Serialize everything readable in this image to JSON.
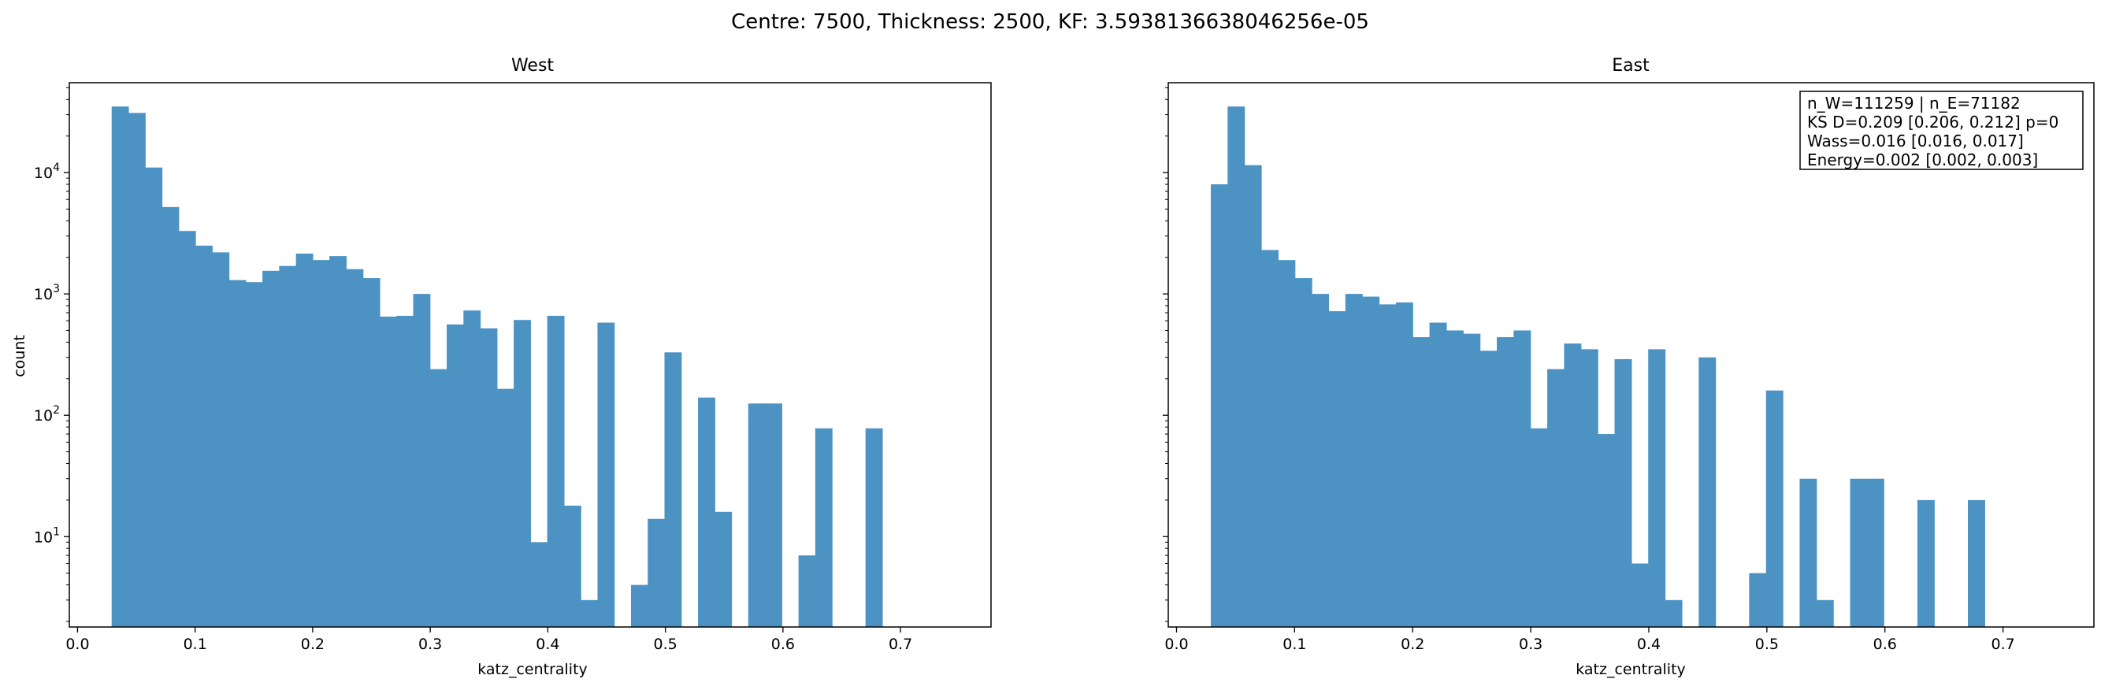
{
  "figure": {
    "suptitle": "Centre: 7500, Thickness: 2500, KF: 3.5938136638046256e-05"
  },
  "colors": {
    "bar": "#4c93c4",
    "axis": "#000000",
    "background": "#ffffff"
  },
  "chart_data": [
    {
      "type": "bar",
      "title": "West",
      "xlabel": "katz_centrality",
      "ylabel": "count",
      "yscale": "log",
      "xlim": [
        -0.007,
        0.777
      ],
      "ylim": [
        1.8,
        55000
      ],
      "xticks": [
        "0.0",
        "0.1",
        "0.2",
        "0.3",
        "0.4",
        "0.5",
        "0.6",
        "0.7"
      ],
      "yticks": [
        "10^1",
        "10^2",
        "10^3",
        "10^4"
      ],
      "bin_start": 0.029,
      "bin_width": 0.01425,
      "values": [
        35000,
        31000,
        11000,
        5200,
        3300,
        2500,
        2200,
        1300,
        1250,
        1550,
        1700,
        2150,
        1900,
        2050,
        1600,
        1350,
        650,
        660,
        1000,
        240,
        560,
        730,
        520,
        165,
        610,
        9,
        660,
        18,
        3,
        580,
        0,
        4,
        14,
        330,
        0,
        140,
        16,
        0,
        125,
        125,
        0,
        7,
        78,
        0,
        0,
        78
      ],
      "grid": false,
      "legend": "none"
    },
    {
      "type": "bar",
      "title": "East",
      "xlabel": "katz_centrality",
      "ylabel": "",
      "yscale": "log",
      "xlim": [
        -0.007,
        0.777
      ],
      "ylim": [
        1.8,
        55000
      ],
      "xticks": [
        "0.0",
        "0.1",
        "0.2",
        "0.3",
        "0.4",
        "0.5",
        "0.6",
        "0.7"
      ],
      "yticks": [],
      "bin_start": 0.029,
      "bin_width": 0.01425,
      "values": [
        8000,
        35000,
        11500,
        2300,
        1900,
        1350,
        1000,
        720,
        1000,
        950,
        820,
        850,
        440,
        580,
        500,
        470,
        340,
        440,
        500,
        78,
        240,
        390,
        350,
        70,
        290,
        6,
        350,
        3,
        0,
        300,
        0,
        0,
        5,
        160,
        0,
        30,
        3,
        0,
        30,
        30,
        0,
        0,
        20,
        0,
        0,
        20
      ],
      "annotation": [
        "n_W=111259 | n_E=71182",
        "KS D=0.209 [0.206, 0.212]  p=0",
        "Wass=0.016 [0.016, 0.017]",
        "Energy=0.002 [0.002, 0.003]"
      ],
      "grid": false,
      "legend": "none"
    }
  ]
}
